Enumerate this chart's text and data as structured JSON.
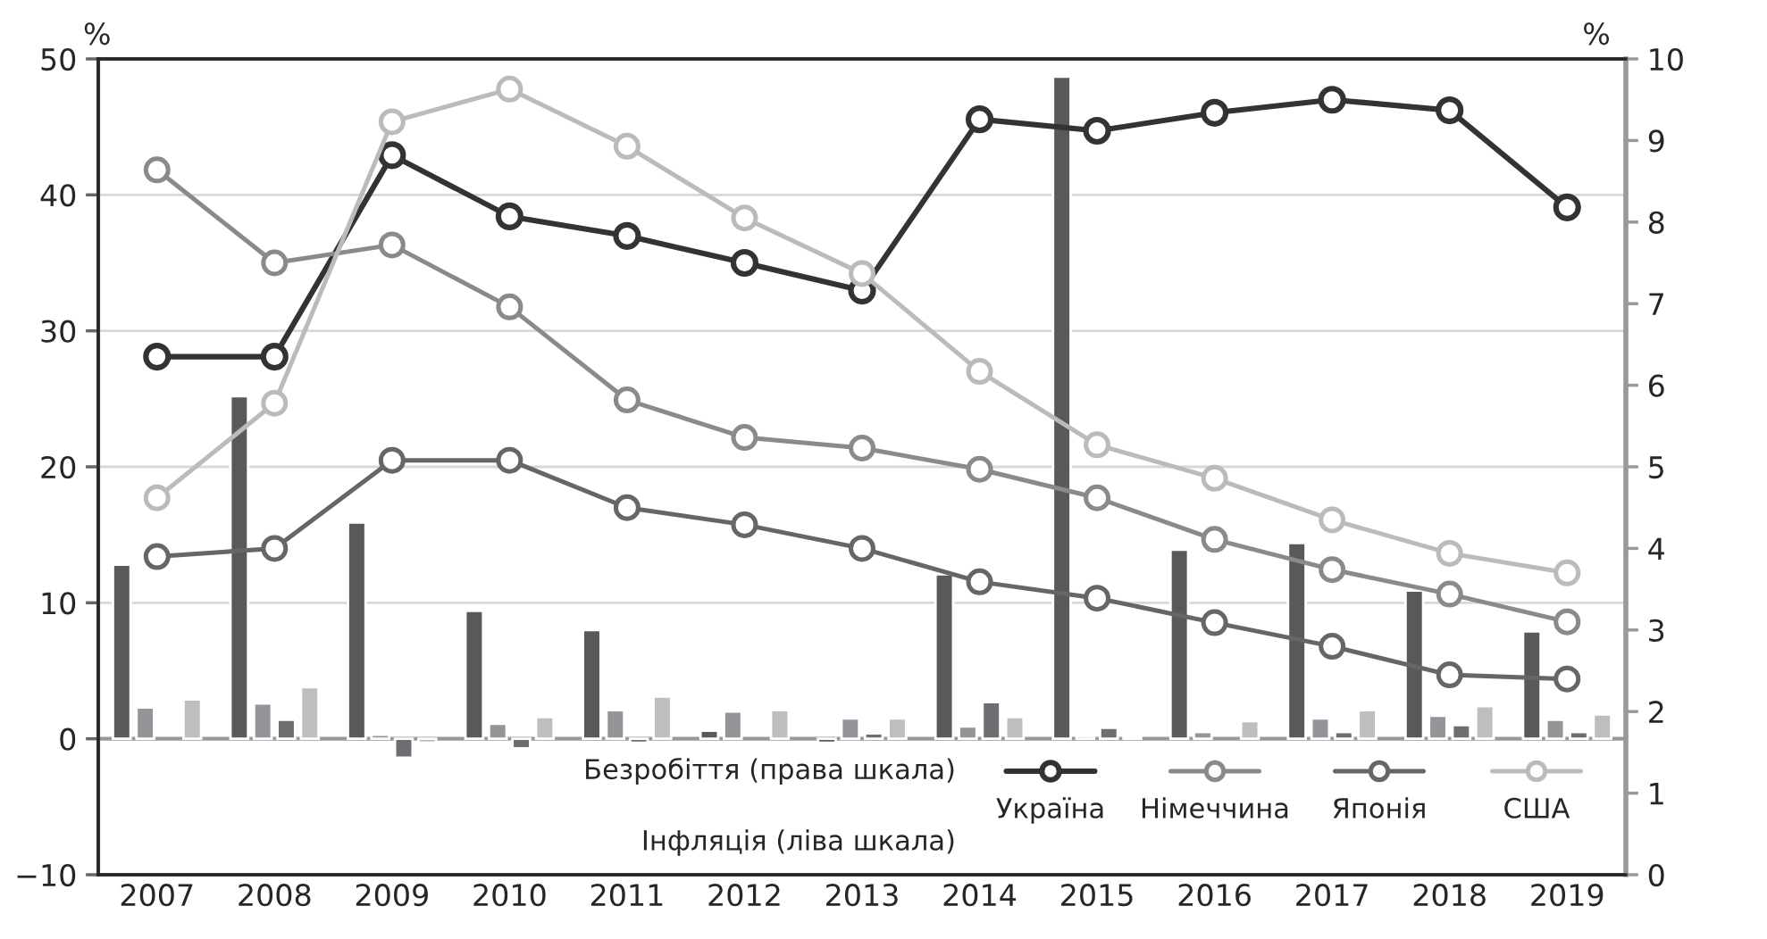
{
  "chart_data": {
    "type": "bar",
    "categories": [
      "2007",
      "2008",
      "2009",
      "2010",
      "2011",
      "2012",
      "2013",
      "2014",
      "2015",
      "2016",
      "2017",
      "2018",
      "2019"
    ],
    "ylabel": "%",
    "y2label": "%",
    "ylim": [
      -10,
      50
    ],
    "yticks": [
      {
        "value": -10,
        "label": "−10"
      },
      0,
      10,
      20,
      30,
      40,
      50
    ],
    "y2lim": [
      0,
      10
    ],
    "y2ticks": [
      0,
      1,
      2,
      3,
      4,
      5,
      6,
      7,
      8,
      9,
      10
    ],
    "grid": "y",
    "legend": "bottom",
    "marker": "circle",
    "line_style": "solid",
    "ref_lines": [
      {
        "axis": "y",
        "value": 0,
        "color": "#999999"
      }
    ],
    "annotations": [
      "Безробіття (права шкала)",
      "Інфляція (ліва шкала)"
    ],
    "series": [
      {
        "name": "Україна",
        "type": "line",
        "axis": "y2",
        "color": "#333333",
        "values": [
          6.35,
          6.35,
          8.82,
          8.07,
          7.83,
          7.5,
          7.16,
          9.26,
          9.12,
          9.34,
          9.5,
          9.37,
          8.18
        ]
      },
      {
        "name": "Німеччина",
        "type": "line",
        "axis": "y2",
        "color": "#8a8a8a",
        "values": [
          8.64,
          7.5,
          7.72,
          6.96,
          5.82,
          5.36,
          5.23,
          4.97,
          4.62,
          4.11,
          3.74,
          3.44,
          3.1
        ]
      },
      {
        "name": "Японія",
        "type": "line",
        "axis": "y2",
        "color": "#666666",
        "values": [
          3.9,
          4.0,
          5.08,
          5.08,
          4.5,
          4.29,
          4.0,
          3.59,
          3.39,
          3.09,
          2.8,
          2.45,
          2.4
        ]
      },
      {
        "name": "США",
        "type": "line",
        "axis": "y2",
        "color": "#bbbbbb",
        "values": [
          4.62,
          5.78,
          9.23,
          9.63,
          8.93,
          8.05,
          7.37,
          6.17,
          5.27,
          4.86,
          4.35,
          3.94,
          3.7
        ]
      },
      {
        "color": "#58595b",
        "values": [
          12.8,
          25.2,
          15.9,
          9.4,
          8.0,
          0.6,
          -0.3,
          12.1,
          48.7,
          13.9,
          14.4,
          10.9,
          7.9
        ]
      },
      {
        "color": "#939598",
        "values": [
          2.3,
          2.6,
          0.3,
          1.1,
          2.1,
          2.0,
          1.5,
          0.9,
          0.2,
          0.5,
          1.5,
          1.7,
          1.4
        ]
      },
      {
        "color": "#6d6e71",
        "values": [
          null,
          1.4,
          -1.4,
          -0.7,
          -0.3,
          null,
          0.4,
          2.7,
          0.8,
          null,
          0.5,
          1.0,
          0.5
        ]
      },
      {
        "color": "#bcbec0",
        "values": [
          2.9,
          3.8,
          -0.3,
          1.6,
          3.1,
          2.1,
          1.5,
          1.6,
          0.1,
          1.3,
          2.1,
          2.4,
          1.8
        ]
      }
    ]
  }
}
